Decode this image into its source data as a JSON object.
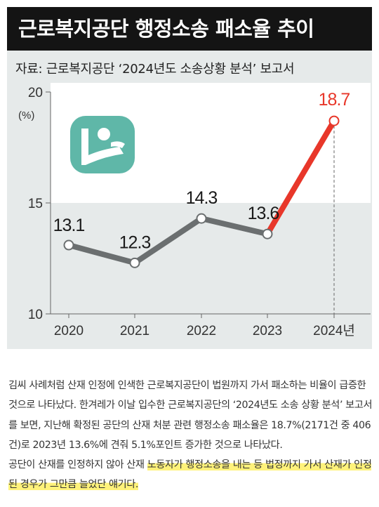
{
  "figure": {
    "title": "근로복지공단 행정소송 패소율 추이",
    "source": "자료: 근로복지공단 ‘2024년도 소송상황 분석’ 보고서",
    "logo_icon": "comwel-logo-icon"
  },
  "chart_data": {
    "type": "line",
    "unit_label": "(%)",
    "categories": [
      "2020",
      "2021",
      "2022",
      "2023",
      "2024년"
    ],
    "values": [
      13.1,
      12.3,
      14.3,
      13.6,
      18.7
    ],
    "value_labels": [
      "13.1",
      "12.3",
      "14.3",
      "13.6",
      "18.7"
    ],
    "y_ticks": [
      "10",
      "15",
      "20"
    ],
    "ylim": [
      10,
      20
    ],
    "grid": false,
    "colors": {
      "line": "#6b6f70",
      "highlight": "#e8372a",
      "point_fill": "#ffffff"
    }
  },
  "article": {
    "paragraph_1": "김씨 사례처럼 산재 인정에 인색한 근로복지공단이 법원까지 가서 패소하는 비율이 급증한 것으로 나타났다. 한겨레가 이날 입수한 근로복지공단의 ‘2024년도 소송 상황 분석’ 보고서를 보면, 지난해 확정된 공단의 산재 처분 관련 행정소송 패소율은 18.7%(2171건 중 406건)로 2023년 13.6%에 견줘 5.1%포인트 증가한 것으로 나타났다.",
    "paragraph_2_plain": "공단이 산재를 인정하지 않아 산재 ",
    "paragraph_2_highlight": "노동자가 행정소송을 내는 등 법정까지 가서 산재가 인정된 경우가 그만큼 늘었단 얘기다."
  }
}
